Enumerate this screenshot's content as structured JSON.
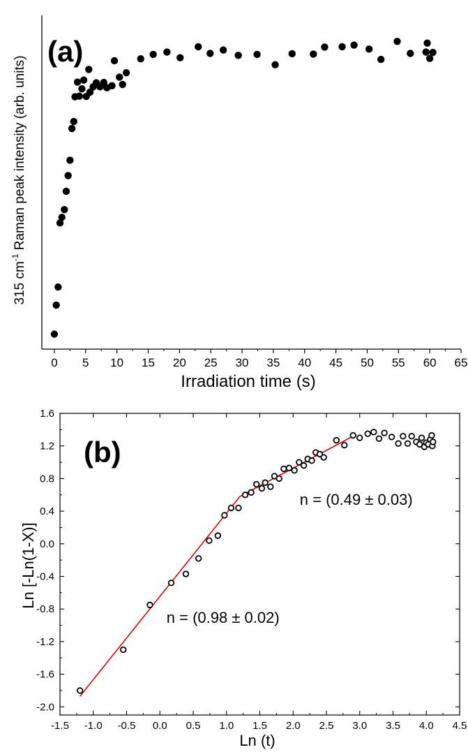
{
  "chart_data": [
    {
      "type": "scatter",
      "panel_label": "(a)",
      "xlabel": "Irradiation time (s)",
      "ylabel_main": "315 cm",
      "ylabel_sup": "-1",
      "ylabel_rest": " Raman peak intensity (arb. units)",
      "xlim": [
        -2,
        65
      ],
      "ylim": [
        0,
        1.0
      ],
      "x_ticks": [
        "0",
        "5",
        "10",
        "15",
        "20",
        "25",
        "30",
        "35",
        "40",
        "45",
        "50",
        "55",
        "60",
        "65"
      ],
      "y_tick_labels_shown": false,
      "marker": "filled-circle",
      "marker_color": "#000000",
      "series": [
        {
          "points": [
            [
              0.0,
              0.045
            ],
            [
              0.3,
              0.132
            ],
            [
              0.6,
              0.186
            ],
            [
              0.9,
              0.378
            ],
            [
              1.2,
              0.395
            ],
            [
              1.6,
              0.418
            ],
            [
              1.9,
              0.473
            ],
            [
              2.2,
              0.52
            ],
            [
              2.5,
              0.566
            ],
            [
              2.8,
              0.661
            ],
            [
              3.1,
              0.682
            ],
            [
              3.3,
              0.756
            ],
            [
              3.7,
              0.8
            ],
            [
              4.0,
              0.758
            ],
            [
              4.4,
              0.78
            ],
            [
              4.7,
              0.806
            ],
            [
              5.1,
              0.757
            ],
            [
              5.5,
              0.838
            ],
            [
              5.7,
              0.77
            ],
            [
              6.2,
              0.786
            ],
            [
              6.7,
              0.798
            ],
            [
              7.3,
              0.786
            ],
            [
              7.9,
              0.799
            ],
            [
              8.4,
              0.783
            ],
            [
              9.2,
              0.789
            ],
            [
              9.6,
              0.864
            ],
            [
              10.4,
              0.815
            ],
            [
              10.9,
              0.793
            ],
            [
              11.5,
              0.828
            ],
            [
              13.8,
              0.87
            ],
            [
              15.8,
              0.883
            ],
            [
              18.0,
              0.89
            ],
            [
              20.1,
              0.873
            ],
            [
              23.0,
              0.906
            ],
            [
              24.9,
              0.886
            ],
            [
              27.0,
              0.896
            ],
            [
              29.4,
              0.88
            ],
            [
              32.4,
              0.883
            ],
            [
              35.3,
              0.852
            ],
            [
              38.0,
              0.885
            ],
            [
              41.4,
              0.884
            ],
            [
              43.2,
              0.905
            ],
            [
              46.0,
              0.906
            ],
            [
              47.9,
              0.911
            ],
            [
              50.3,
              0.899
            ],
            [
              52.2,
              0.868
            ],
            [
              54.8,
              0.922
            ],
            [
              56.9,
              0.886
            ],
            [
              59.4,
              0.89
            ],
            [
              59.6,
              0.917
            ],
            [
              60.0,
              0.871
            ],
            [
              60.5,
              0.889
            ]
          ]
        }
      ]
    },
    {
      "type": "scatter",
      "panel_label": "(b)",
      "xlabel": "Ln (t)",
      "ylabel": "Ln [-Ln(1-X)]",
      "xlim": [
        -1.5,
        4.5
      ],
      "ylim": [
        -2.1,
        1.6
      ],
      "x_ticks": [
        "-1.5",
        "-1.0",
        "-0.5",
        "0.0",
        "0.5",
        "1.0",
        "1.5",
        "2.0",
        "2.5",
        "3.0",
        "3.5",
        "4.0",
        "4.5"
      ],
      "y_ticks": [
        "-2.0",
        "-1.6",
        "-1.2",
        "-0.8",
        "-0.4",
        "0.0",
        "0.4",
        "0.8",
        "1.2",
        "1.6"
      ],
      "marker": "open-circle",
      "marker_color": "#000000",
      "fit_color": "#e00000",
      "annotations": [
        {
          "text": "n = (0.49 ± 0.03)",
          "x": 2.1,
          "y": 0.48
        },
        {
          "text": "n = (0.98 ± 0.02)",
          "x": 0.1,
          "y": -0.97
        }
      ],
      "fit_lines": [
        {
          "x": [
            -1.2,
            1.2
          ],
          "y": [
            -1.87,
            0.58
          ]
        },
        {
          "x": [
            1.2,
            2.9
          ],
          "y": [
            0.58,
            1.32
          ]
        }
      ],
      "series": [
        {
          "points": [
            [
              -1.2,
              -1.8
            ],
            [
              -0.55,
              -1.3
            ],
            [
              -0.15,
              -0.75
            ],
            [
              0.17,
              -0.48
            ],
            [
              0.39,
              -0.37
            ],
            [
              0.58,
              -0.18
            ],
            [
              0.74,
              0.04
            ],
            [
              0.87,
              0.1
            ],
            [
              0.97,
              0.35
            ],
            [
              1.07,
              0.44
            ],
            [
              1.18,
              0.44
            ],
            [
              1.28,
              0.6
            ],
            [
              1.37,
              0.63
            ],
            [
              1.45,
              0.73
            ],
            [
              1.53,
              0.68
            ],
            [
              1.58,
              0.75
            ],
            [
              1.66,
              0.7
            ],
            [
              1.72,
              0.83
            ],
            [
              1.79,
              0.8
            ],
            [
              1.86,
              0.92
            ],
            [
              1.94,
              0.93
            ],
            [
              2.02,
              0.9
            ],
            [
              2.09,
              1.0
            ],
            [
              2.16,
              0.96
            ],
            [
              2.22,
              1.04
            ],
            [
              2.28,
              1.02
            ],
            [
              2.34,
              1.12
            ],
            [
              2.4,
              1.1
            ],
            [
              2.46,
              1.06
            ],
            [
              2.65,
              1.27
            ],
            [
              2.77,
              1.21
            ],
            [
              2.9,
              1.33
            ],
            [
              3.0,
              1.3
            ],
            [
              3.12,
              1.35
            ],
            [
              3.21,
              1.37
            ],
            [
              3.29,
              1.29
            ],
            [
              3.37,
              1.36
            ],
            [
              3.48,
              1.31
            ],
            [
              3.58,
              1.23
            ],
            [
              3.65,
              1.32
            ],
            [
              3.72,
              1.23
            ],
            [
              3.78,
              1.32
            ],
            [
              3.85,
              1.25
            ],
            [
              3.9,
              1.22
            ],
            [
              3.93,
              1.3
            ],
            [
              3.97,
              1.19
            ],
            [
              4.0,
              1.24
            ],
            [
              4.03,
              1.22
            ],
            [
              4.06,
              1.28
            ],
            [
              4.08,
              1.33
            ],
            [
              4.09,
              1.2
            ],
            [
              4.1,
              1.25
            ]
          ]
        }
      ]
    }
  ]
}
